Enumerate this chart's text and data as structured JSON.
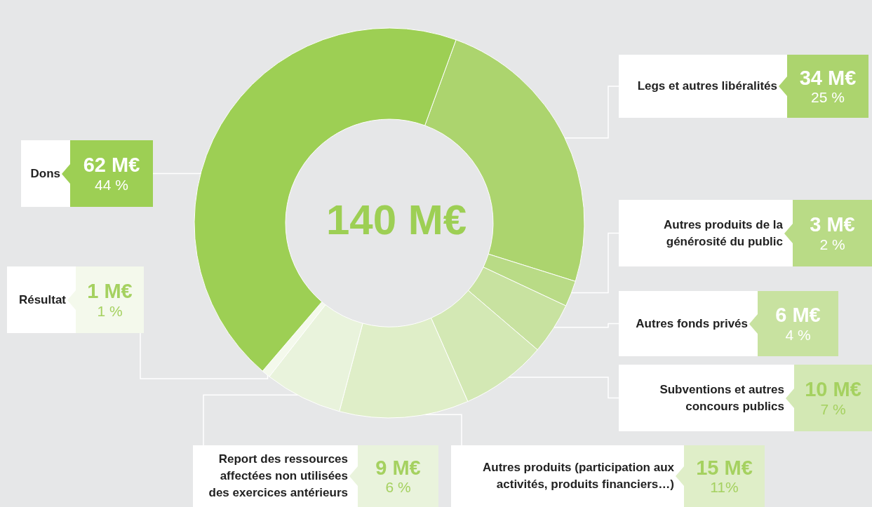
{
  "chart_data": {
    "type": "donut",
    "categories": [
      "Legs et autres libéralités",
      "Autres produits de la générosité du public",
      "Autres fonds privés",
      "Subventions et autres concours publics",
      "Autres produits (participation aux activités, produits financiers…)",
      "Report des ressources affectées non utilisées des exercices antérieurs",
      "Résultat",
      "Dons"
    ],
    "values": [
      34,
      3,
      6,
      10,
      15,
      9,
      1,
      62
    ],
    "value_labels": [
      "34 M€\n25 %",
      "3 M€\n2 %",
      "6 M€\n4 %",
      "10 M€\n7 %",
      "15 M€\n11%",
      "9 M€\n6 %",
      "1 M€\n1 %",
      "62 M€\n44 %"
    ],
    "colors": [
      "#acd46e",
      "#b9db86",
      "#c8e2a0",
      "#d3e8b4",
      "#dfeec8",
      "#e9f3dc",
      "#f4f9ec",
      "#9dcf54"
    ],
    "annotations": [
      "140 M€"
    ],
    "legend": "right"
  }
}
